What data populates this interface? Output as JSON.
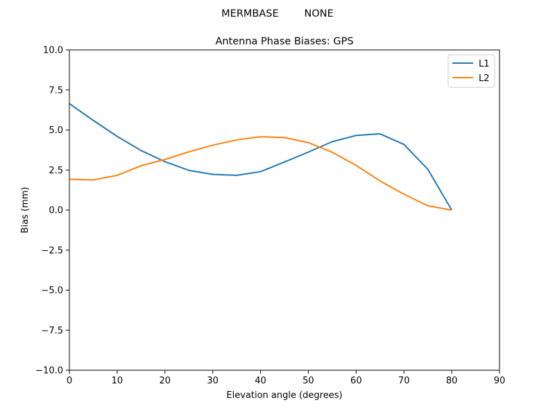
{
  "suptitle": "MERMBASE        NONE",
  "chart_data": {
    "type": "line",
    "title": "Antenna Phase Biases: GPS",
    "xlabel": "Elevation angle (degrees)",
    "ylabel": "Bias (mm)",
    "xlim": [
      0,
      90
    ],
    "ylim": [
      -10,
      10
    ],
    "xticks": [
      0,
      10,
      20,
      30,
      40,
      50,
      60,
      70,
      80,
      90
    ],
    "yticks": [
      -10.0,
      -7.5,
      -5.0,
      -2.5,
      0.0,
      2.5,
      5.0,
      7.5,
      10.0
    ],
    "xtick_labels": [
      "0",
      "10",
      "20",
      "30",
      "40",
      "50",
      "60",
      "70",
      "80",
      "90"
    ],
    "ytick_labels": [
      "−10.0",
      "−7.5",
      "−5.0",
      "−2.5",
      "0.0",
      "2.5",
      "5.0",
      "7.5",
      "10.0"
    ],
    "grid": false,
    "legend_position": "top-right",
    "x": [
      0,
      5,
      10,
      15,
      20,
      25,
      30,
      35,
      40,
      45,
      50,
      55,
      60,
      65,
      70,
      75,
      80
    ],
    "series": [
      {
        "name": "L1",
        "color": "#1f77b4",
        "values": [
          6.65,
          5.6,
          4.6,
          3.72,
          3.02,
          2.48,
          2.23,
          2.17,
          2.4,
          3.0,
          3.62,
          4.27,
          4.66,
          4.76,
          4.1,
          2.55,
          0.0
        ]
      },
      {
        "name": "L2",
        "color": "#ff7f0e",
        "values": [
          1.92,
          1.88,
          2.17,
          2.77,
          3.16,
          3.64,
          4.05,
          4.38,
          4.58,
          4.53,
          4.21,
          3.61,
          2.79,
          1.82,
          0.99,
          0.27,
          0.0
        ]
      }
    ]
  }
}
